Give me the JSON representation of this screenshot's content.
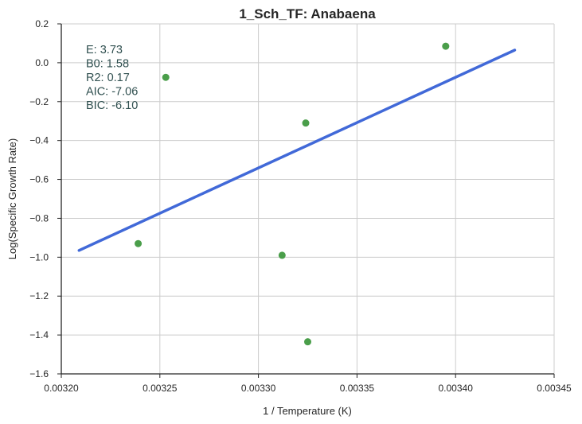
{
  "chart_data": {
    "type": "scatter",
    "title": "1_Sch_TF: Anabaena",
    "xlabel": "1 / Temperature (K)",
    "ylabel": "Log(Specific Growth Rate)",
    "xlim": [
      0.0032,
      0.00345
    ],
    "ylim": [
      -1.6,
      0.2
    ],
    "xticks": [
      "0.00320",
      "0.00325",
      "0.00330",
      "0.00335",
      "0.00340",
      "0.00345"
    ],
    "yticks": [
      "0.2",
      "0.0",
      "−0.2",
      "−0.4",
      "−0.6",
      "−0.8",
      "−1.0",
      "−1.2",
      "−1.4",
      "−1.6"
    ],
    "grid": true,
    "points": {
      "x": [
        0.003239,
        0.003253,
        0.003312,
        0.003324,
        0.003325,
        0.003395
      ],
      "y": [
        -0.93,
        -0.075,
        -0.99,
        -0.31,
        -1.435,
        0.085
      ],
      "color": "#4a9e4a"
    },
    "fit_line": {
      "x": [
        0.003209,
        0.00343
      ],
      "y": [
        -0.965,
        0.065
      ],
      "color": "#4169d8"
    },
    "annotation": {
      "lines": [
        "E:  3.73",
        "B0:  1.58",
        "R2:  0.17",
        "AIC: -7.06",
        "BIC: -6.10"
      ],
      "color": "#2f4f4f"
    }
  }
}
